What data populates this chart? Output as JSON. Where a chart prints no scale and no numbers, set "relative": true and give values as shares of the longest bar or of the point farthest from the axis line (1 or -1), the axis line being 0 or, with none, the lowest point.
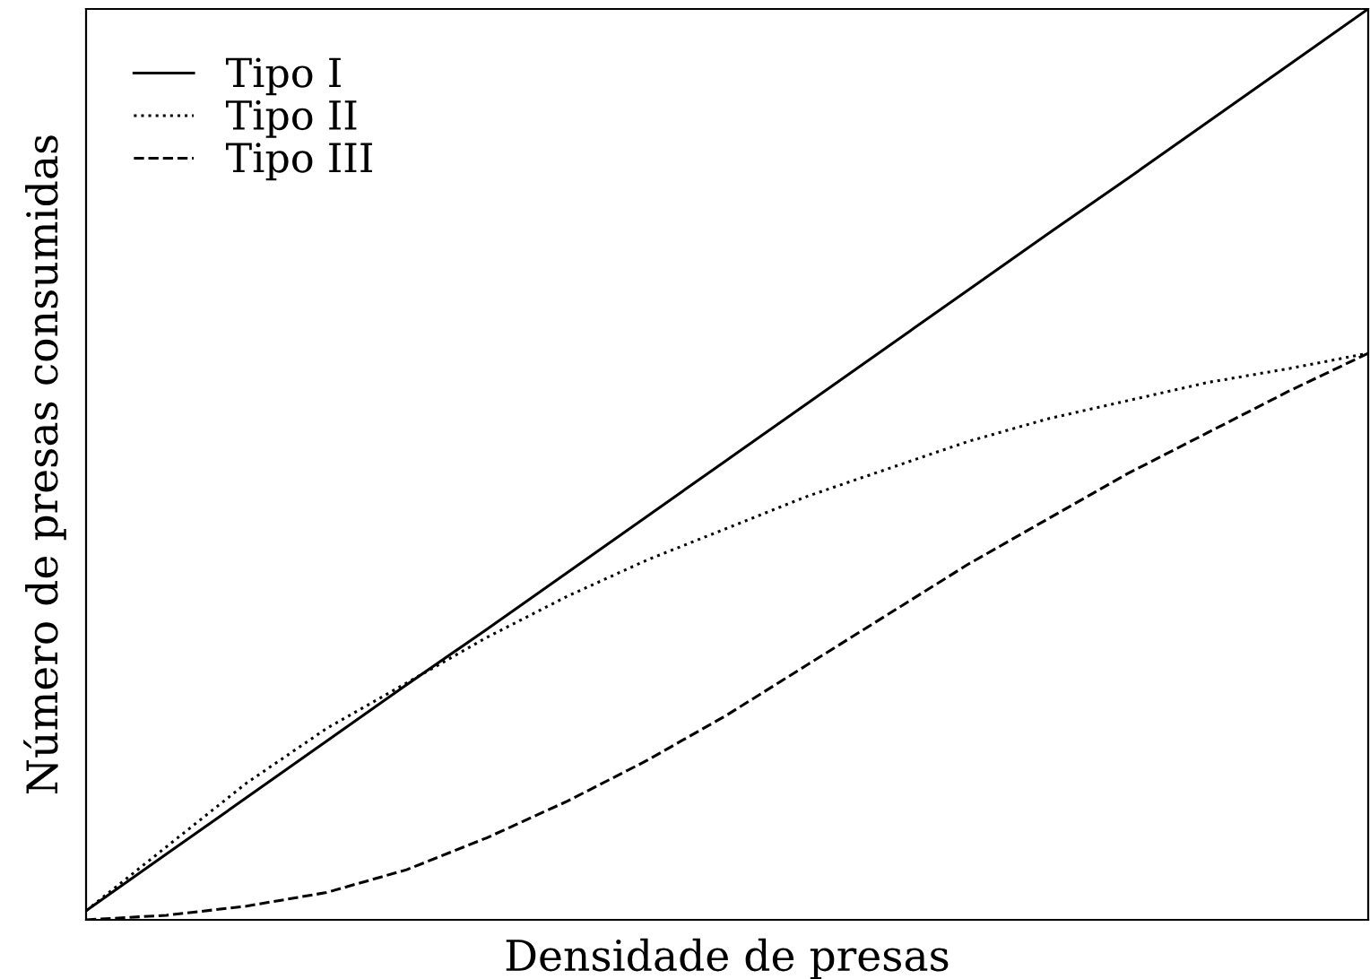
{
  "chart_data": {
    "type": "line",
    "relative": true,
    "xlabel": "Densidade de presas",
    "ylabel": "Número de presas consumidas",
    "categories": [
      null,
      null,
      null,
      null,
      null,
      null,
      null,
      null,
      null,
      null,
      null,
      null,
      null,
      null,
      null,
      null,
      null
    ],
    "series": [
      {
        "name": "Tipo I",
        "color": "#000000",
        "line_style": "solid",
        "values": [
          0.01,
          0.072,
          0.134,
          0.196,
          0.258,
          0.319,
          0.381,
          0.443,
          0.505,
          0.567,
          0.629,
          0.691,
          0.753,
          0.814,
          0.876,
          0.938,
          1.0
        ]
      },
      {
        "name": "Tipo II",
        "color": "#000000",
        "line_style": "dotted",
        "values": [
          0.01,
          0.08,
          0.15,
          0.21,
          0.26,
          0.31,
          0.355,
          0.395,
          0.43,
          0.465,
          0.495,
          0.525,
          0.55,
          0.57,
          0.59,
          0.605,
          0.622
        ]
      },
      {
        "name": "Tipo III",
        "color": "#000000",
        "line_style": "dashed",
        "values": [
          0.0,
          0.005,
          0.015,
          0.03,
          0.055,
          0.09,
          0.13,
          0.175,
          0.225,
          0.28,
          0.335,
          0.39,
          0.44,
          0.49,
          0.535,
          0.58,
          0.622
        ]
      }
    ],
    "legend": "top left",
    "grid": false
  }
}
